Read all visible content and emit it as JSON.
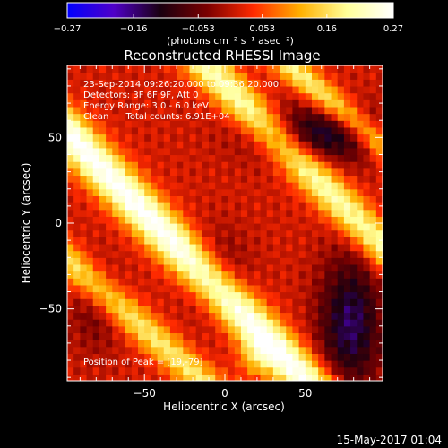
{
  "chart_data": {
    "type": "heatmap",
    "title": "Reconstructed RHESSI Image",
    "xlabel": "Heliocentric X (arcsec)",
    "ylabel": "Heliocentric Y (arcsec)",
    "xlim": [
      -98,
      98
    ],
    "ylim": [
      -92,
      92
    ],
    "x_ticks": [
      -50,
      0,
      50
    ],
    "y_ticks": [
      -50,
      0,
      50
    ],
    "x_tick_labels": [
      "−50",
      "0",
      "50"
    ],
    "y_tick_labels": [
      "−50",
      "0",
      "50"
    ],
    "colorbar": {
      "min": -0.27,
      "max": 0.27,
      "ticks": [
        -0.27,
        -0.16,
        -0.053,
        0.053,
        0.16,
        0.27
      ],
      "tick_labels": [
        "−0.27",
        "−0.16",
        "−0.053",
        "0.053",
        "0.16",
        "0.27"
      ],
      "unit_label": "(photons cm⁻² s⁻¹ asec⁻²)",
      "colors": [
        "#0000ff",
        "#4f00c8",
        "#1a0010",
        "#7a0000",
        "#ff2a00",
        "#ffb000",
        "#ffff99",
        "#ffffff"
      ]
    },
    "info_lines": [
      "23-Sep-2014 09:26:20.000 to 09:36:20.000",
      "Detectors: 3F 6F 9F, Att 0",
      "Energy Range: 3.0 - 6.0 keV",
      "Clean      Total counts: 6.91E+04"
    ],
    "peak_label": "Position of Peak = [19,-79]",
    "peak": [
      19,
      -79
    ],
    "ridges": [
      {
        "x0": -100,
        "y0": 55,
        "x1": 80,
        "y1": -120,
        "amp": 0.26,
        "width": 9
      },
      {
        "x0": -100,
        "y0": -20,
        "x1": 20,
        "y1": -120,
        "amp": 0.16,
        "width": 7
      },
      {
        "x0": -20,
        "y0": 100,
        "x1": 105,
        "y1": -20,
        "amp": 0.2,
        "width": 8
      },
      {
        "x0": 30,
        "y0": 100,
        "x1": 105,
        "y1": 40,
        "amp": 0.17,
        "width": 6
      }
    ],
    "troughs": [
      {
        "x": 60,
        "y": 52,
        "amp": -0.14,
        "sx": 30,
        "sy": 12
      },
      {
        "x": 78,
        "y": -58,
        "amp": -0.16,
        "sx": 14,
        "sy": 28
      },
      {
        "x": -5,
        "y": -30,
        "amp": -0.07,
        "sx": 14,
        "sy": 18
      },
      {
        "x": -80,
        "y": -50,
        "amp": -0.06,
        "sx": 12,
        "sy": 18
      }
    ],
    "base_level": 0.06
  },
  "footer_date": "15-May-2017 01:04"
}
